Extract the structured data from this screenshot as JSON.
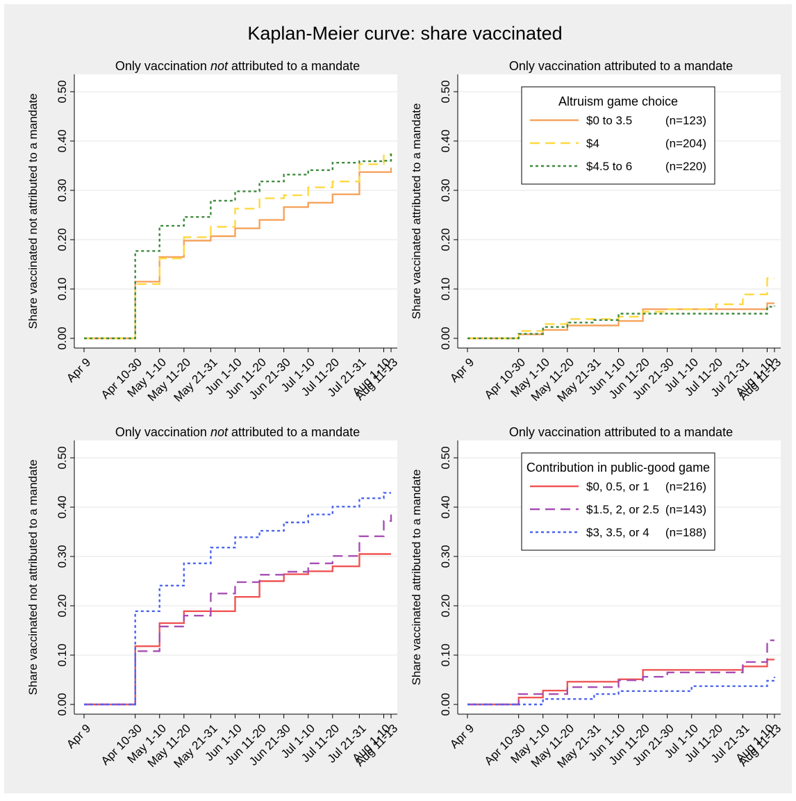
{
  "figure_title": "Kaplan-Meier curve: share vaccinated",
  "chart_data": [
    {
      "type": "line",
      "step": true,
      "title": "Only vaccination not attributed to a mandate",
      "title_italic_word": "not",
      "ylabel": "Share vaccinated not attributed to a mandate",
      "ylim": [
        0,
        0.5
      ],
      "yticks": [
        "0.00",
        "0.10",
        "0.20",
        "0.30",
        "0.40",
        "0.50"
      ],
      "categories": [
        "Apr 9",
        "Apr 10-30",
        "May 1-10",
        "May 11-20",
        "May 21-31",
        "Jun 1-10",
        "Jun 11-20",
        "Jun 21-30",
        "Jul 1-10",
        "Jul 11-20",
        "Jul 21-31",
        "Aug 1-10",
        "Aug 11-13"
      ],
      "x": [
        0,
        21,
        31,
        41,
        52,
        62,
        72,
        82,
        92,
        102,
        113,
        123,
        126
      ],
      "grid": true,
      "series": [
        {
          "name": "$0 to 3.5",
          "color": "#f5a35c",
          "dash": "solid",
          "values": [
            0,
            0.115,
            0.165,
            0.198,
            0.207,
            0.223,
            0.24,
            0.266,
            0.275,
            0.292,
            0.337,
            0.337,
            0.346
          ]
        },
        {
          "name": "$4",
          "color": "#ffd940",
          "dash": "long-dash",
          "values": [
            0,
            0.11,
            0.162,
            0.205,
            0.226,
            0.263,
            0.284,
            0.29,
            0.306,
            0.318,
            0.353,
            0.373,
            0.375
          ]
        },
        {
          "name": "$4.5 to 6",
          "color": "#3d8a3d",
          "dash": "short-dash",
          "values": [
            0,
            0.177,
            0.228,
            0.246,
            0.279,
            0.298,
            0.318,
            0.332,
            0.341,
            0.356,
            0.359,
            0.36,
            0.376
          ]
        }
      ]
    },
    {
      "type": "line",
      "step": true,
      "title": "Only vaccination attributed to a mandate",
      "ylabel": "Share vaccinated attributed to a mandate",
      "ylim": [
        0,
        0.5
      ],
      "yticks": [
        "0.00",
        "0.10",
        "0.20",
        "0.30",
        "0.40",
        "0.50"
      ],
      "categories": [
        "Apr 9",
        "Apr 10-30",
        "May 1-10",
        "May 11-20",
        "May 21-31",
        "Jun 1-10",
        "Jun 11-20",
        "Jun 21-30",
        "Jul 1-10",
        "Jul 11-20",
        "Jul 21-31",
        "Aug 1-10",
        "Aug 11-13"
      ],
      "x": [
        0,
        21,
        31,
        41,
        52,
        62,
        72,
        82,
        92,
        102,
        113,
        123,
        126
      ],
      "grid": true,
      "legend": {
        "title": "Altruism game choice",
        "position": "top-right"
      },
      "series": [
        {
          "name": "$0 to 3.5",
          "n": "(n=123)",
          "color": "#f5a35c",
          "dash": "solid",
          "values": [
            0,
            0.008,
            0.017,
            0.026,
            0.026,
            0.035,
            0.059,
            0.059,
            0.059,
            0.059,
            0.059,
            0.071,
            0.071
          ]
        },
        {
          "name": "$4",
          "n": "(n=204)",
          "color": "#ffd940",
          "dash": "long-dash",
          "values": [
            0,
            0.015,
            0.029,
            0.039,
            0.039,
            0.044,
            0.054,
            0.059,
            0.059,
            0.069,
            0.089,
            0.122,
            0.122
          ]
        },
        {
          "name": "$4.5 to 6",
          "n": "(n=220)",
          "color": "#3d8a3d",
          "dash": "short-dash",
          "values": [
            0,
            0.009,
            0.023,
            0.032,
            0.037,
            0.05,
            0.05,
            0.05,
            0.05,
            0.05,
            0.05,
            0.064,
            0.066
          ]
        }
      ]
    },
    {
      "type": "line",
      "step": true,
      "title": "Only vaccination not attributed to a mandate",
      "title_italic_word": "not",
      "ylabel": "Share vaccinated not attributed to a mandate",
      "ylim": [
        0,
        0.5
      ],
      "yticks": [
        "0.00",
        "0.10",
        "0.20",
        "0.30",
        "0.40",
        "0.50"
      ],
      "categories": [
        "Apr 9",
        "Apr 10-30",
        "May 1-10",
        "May 11-20",
        "May 21-31",
        "Jun 1-10",
        "Jun 11-20",
        "Jun 21-30",
        "Jul 1-10",
        "Jul 11-20",
        "Jul 21-31",
        "Aug 1-10",
        "Aug 11-13"
      ],
      "x": [
        0,
        21,
        31,
        41,
        52,
        62,
        72,
        82,
        92,
        102,
        113,
        123,
        126
      ],
      "grid": true,
      "series": [
        {
          "name": "$0, 0.5, or 1",
          "color": "#f05454",
          "dash": "solid",
          "values": [
            0,
            0.118,
            0.165,
            0.189,
            0.189,
            0.218,
            0.25,
            0.264,
            0.27,
            0.28,
            0.305,
            0.305,
            0.305
          ]
        },
        {
          "name": "$1.5, 2, or 2.5",
          "color": "#a64db3",
          "dash": "long-dash",
          "values": [
            0,
            0.108,
            0.158,
            0.18,
            0.225,
            0.248,
            0.263,
            0.269,
            0.286,
            0.301,
            0.341,
            0.372,
            0.385
          ]
        },
        {
          "name": "$3, 3.5, or 4",
          "color": "#4a64f0",
          "dash": "short-dash",
          "values": [
            0,
            0.189,
            0.241,
            0.286,
            0.318,
            0.339,
            0.352,
            0.369,
            0.385,
            0.401,
            0.418,
            0.429,
            0.429
          ]
        }
      ]
    },
    {
      "type": "line",
      "step": true,
      "title": "Only vaccination attributed to a mandate",
      "ylabel": "Share vaccinated attributed to a mandate",
      "ylim": [
        0,
        0.5
      ],
      "yticks": [
        "0.00",
        "0.10",
        "0.20",
        "0.30",
        "0.40",
        "0.50"
      ],
      "categories": [
        "Apr 9",
        "Apr 10-30",
        "May 1-10",
        "May 11-20",
        "May 21-31",
        "Jun 1-10",
        "Jun 11-20",
        "Jun 21-30",
        "Jul 1-10",
        "Jul 11-20",
        "Jul 21-31",
        "Aug 1-10",
        "Aug 11-13"
      ],
      "x": [
        0,
        21,
        31,
        41,
        52,
        62,
        72,
        82,
        92,
        102,
        113,
        123,
        126
      ],
      "grid": true,
      "legend": {
        "title": "Contribution in public-good game",
        "position": "top-right"
      },
      "series": [
        {
          "name": "$0, 0.5, or 1",
          "n": "(n=216)",
          "color": "#f05454",
          "dash": "solid",
          "values": [
            0,
            0.014,
            0.028,
            0.046,
            0.046,
            0.051,
            0.07,
            0.07,
            0.07,
            0.07,
            0.077,
            0.091,
            0.091
          ]
        },
        {
          "name": "$1.5, 2, or 2.5",
          "n": "(n=143)",
          "color": "#a64db3",
          "dash": "long-dash",
          "values": [
            0,
            0.021,
            0.021,
            0.035,
            0.035,
            0.049,
            0.056,
            0.065,
            0.065,
            0.065,
            0.086,
            0.13,
            0.13
          ]
        },
        {
          "name": "$3, 3.5, or 4",
          "n": "(n=188)",
          "color": "#4a64f0",
          "dash": "short-dash",
          "values": [
            0,
            0,
            0.011,
            0.011,
            0.021,
            0.027,
            0.027,
            0.027,
            0.037,
            0.037,
            0.037,
            0.048,
            0.056
          ]
        }
      ]
    }
  ]
}
